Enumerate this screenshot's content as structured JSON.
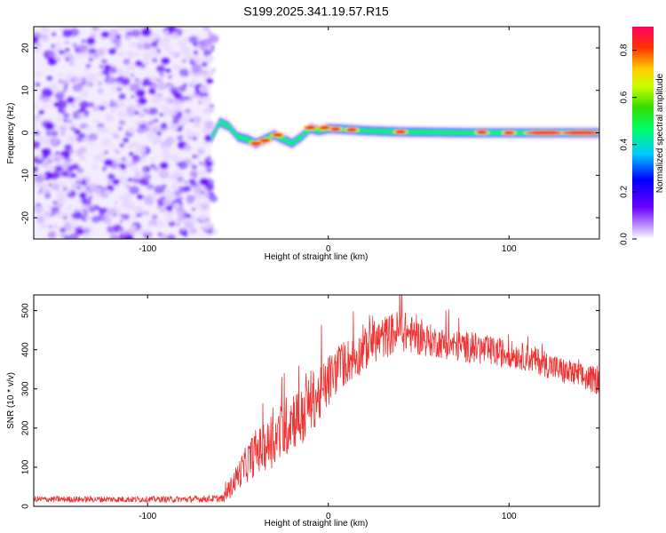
{
  "title": "S199.2025.341.19.57.R15",
  "chart_data": [
    {
      "type": "heatmap",
      "name": "spectrogram",
      "xlabel": "Height of straight line (km)",
      "ylabel": "Frequency (Hz)",
      "xlim": [
        -163,
        150
      ],
      "ylim": [
        -25,
        25
      ],
      "xticks": [
        -100,
        0,
        100
      ],
      "yticks": [
        -20,
        -10,
        0,
        10,
        20
      ],
      "noise_region_x": [
        -163,
        -65
      ],
      "ridge": {
        "x": [
          -65,
          -60,
          -55,
          -50,
          -45,
          -40,
          -35,
          -30,
          -25,
          -20,
          -15,
          -10,
          -5,
          0,
          10,
          20,
          40,
          60,
          80,
          100,
          120,
          150
        ],
        "freq": [
          -1.5,
          2.5,
          1.5,
          -1,
          -1.5,
          -2.5,
          -1.5,
          -0.5,
          -1.5,
          -2.5,
          -1,
          1,
          0.5,
          1,
          0.8,
          0.5,
          0.2,
          0.1,
          0,
          0,
          0,
          0
        ],
        "peak_x": [
          -40,
          -35,
          -28,
          -10,
          -2,
          4,
          13,
          40,
          85,
          100,
          120,
          140
        ],
        "peak_freq": [
          -2.5,
          -1.8,
          -0.5,
          1.2,
          1.2,
          0.9,
          0.7,
          0.2,
          0.1,
          0,
          0,
          0
        ]
      },
      "colorbar": {
        "label": "Normalized spectral amplitude",
        "range": [
          0,
          0.9
        ],
        "ticks": [
          "0.0",
          "0.2",
          "0.4",
          "0.6",
          "0.8"
        ]
      }
    },
    {
      "type": "line",
      "name": "snr",
      "xlabel": "Height of straight line (km)",
      "ylabel": "SNR (10 * v/v)",
      "xlim": [
        -163,
        150
      ],
      "ylim": [
        0,
        540
      ],
      "xticks": [
        -100,
        0,
        100
      ],
      "yticks": [
        0,
        100,
        200,
        300,
        400,
        500
      ],
      "series_color": "#ee3333",
      "envelope": {
        "x": [
          -163,
          -120,
          -80,
          -58,
          -55,
          -50,
          -45,
          -40,
          -35,
          -30,
          -25,
          -20,
          -15,
          -10,
          -5,
          0,
          5,
          10,
          15,
          20,
          25,
          30,
          35,
          40,
          45,
          50,
          60,
          70,
          80,
          90,
          100,
          110,
          120,
          130,
          140,
          150
        ],
        "mean": [
          18,
          18,
          18,
          20,
          40,
          80,
          110,
          140,
          150,
          170,
          190,
          230,
          220,
          270,
          280,
          320,
          350,
          370,
          380,
          400,
          420,
          430,
          440,
          450,
          440,
          430,
          420,
          410,
          405,
          395,
          390,
          380,
          365,
          345,
          330,
          320
        ],
        "spread": [
          8,
          8,
          8,
          10,
          25,
          35,
          50,
          60,
          60,
          70,
          80,
          80,
          80,
          80,
          70,
          70,
          60,
          60,
          55,
          55,
          55,
          55,
          55,
          55,
          50,
          45,
          40,
          40,
          40,
          40,
          35,
          35,
          35,
          35,
          35,
          35
        ]
      }
    }
  ]
}
